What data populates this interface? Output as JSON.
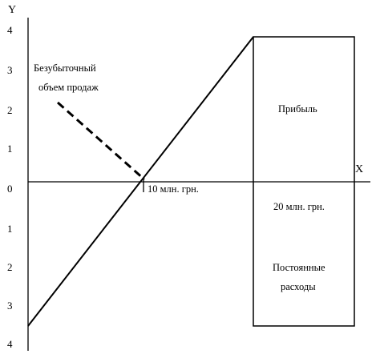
{
  "diagram": {
    "axis_x_label": "X",
    "axis_y_label": "Y",
    "origin_label": "0",
    "y_ticks_upper": [
      "4",
      "3",
      "2",
      "1"
    ],
    "y_ticks_lower": [
      "1",
      "2",
      "3",
      "4"
    ],
    "breakeven_label_line1": "Безубыточный",
    "breakeven_label_line2": "объем продаж",
    "breakeven_point_label": "10 млн. грн.",
    "profit_label": "Прибыль",
    "sales_label": "20 млн. грн.",
    "fixed_costs_line1": "Постоянные",
    "fixed_costs_line2": "расходы"
  }
}
